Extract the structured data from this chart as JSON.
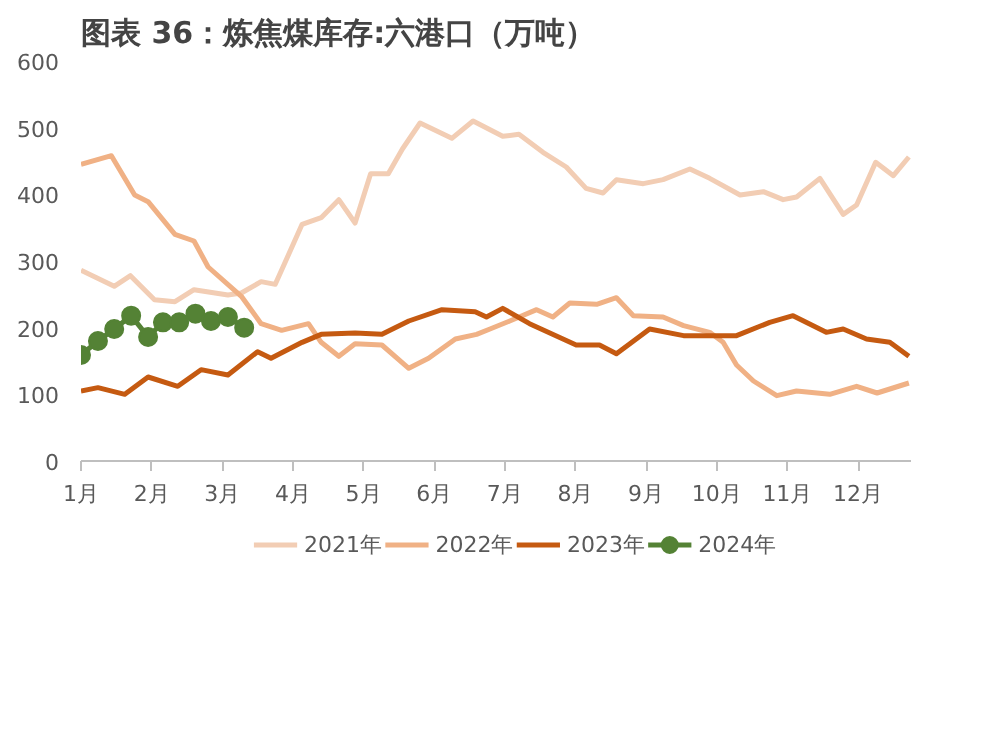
{
  "chart_data": {
    "type": "line",
    "title": "图表 36：炼焦煤库存:六港口（万吨）",
    "xlim": [
      1,
      12.75
    ],
    "xticks": [
      {
        "value": 1,
        "label": "1月"
      },
      {
        "value": 2,
        "label": "2月"
      },
      {
        "value": 3,
        "label": "3月"
      },
      {
        "value": 4,
        "label": "4月"
      },
      {
        "value": 5,
        "label": "5月"
      },
      {
        "value": 6,
        "label": "6月"
      },
      {
        "value": 7,
        "label": "7月"
      },
      {
        "value": 8,
        "label": "8月"
      },
      {
        "value": 9,
        "label": "9月"
      },
      {
        "value": 10,
        "label": "10月"
      },
      {
        "value": 11,
        "label": "11月"
      },
      {
        "value": 12,
        "label": "12月"
      }
    ],
    "ylim": [
      0,
      600
    ],
    "yticks": [
      0,
      100,
      200,
      300,
      400,
      500,
      600
    ],
    "grid": false,
    "legend": "bottom",
    "series": [
      {
        "name": "2021年",
        "color": "#f2cdb4",
        "marker": "none",
        "x": [
          1.0,
          1.47,
          1.7,
          2.04,
          2.33,
          2.6,
          3.08,
          3.27,
          3.55,
          3.75,
          4.13,
          4.4,
          4.65,
          4.88,
          5.1,
          5.35,
          5.55,
          5.8,
          6.25,
          6.55,
          6.97,
          7.2,
          7.54,
          7.87,
          8.15,
          8.39,
          8.58,
          8.96,
          9.24,
          9.62,
          9.9,
          10.33,
          10.66,
          10.94,
          11.13,
          11.46,
          11.79,
          11.98,
          12.25,
          12.5,
          12.72
        ],
        "values": [
          286,
          262,
          278,
          242,
          239,
          257,
          249,
          252,
          269,
          265,
          355,
          365,
          392,
          357,
          431,
          431,
          468,
          507,
          484,
          510,
          487,
          490,
          463,
          441,
          409,
          402,
          422,
          416,
          422,
          438,
          424,
          399,
          404,
          392,
          396,
          424,
          370,
          384,
          448,
          428,
          456
        ]
      },
      {
        "name": "2022年",
        "color": "#f0b185",
        "marker": "none",
        "x": [
          1.0,
          1.43,
          1.76,
          1.95,
          2.33,
          2.6,
          2.8,
          3.27,
          3.55,
          3.84,
          4.22,
          4.4,
          4.65,
          4.88,
          5.26,
          5.64,
          5.92,
          6.3,
          6.6,
          6.79,
          7.07,
          7.45,
          7.68,
          7.92,
          8.3,
          8.58,
          8.82,
          9.24,
          9.53,
          9.9,
          10.09,
          10.28,
          10.52,
          10.85,
          11.13,
          11.6,
          11.98,
          12.27,
          12.72
        ],
        "values": [
          445,
          458,
          399,
          389,
          340,
          330,
          291,
          247,
          206,
          196,
          206,
          178,
          157,
          176,
          174,
          139,
          154,
          183,
          190,
          198,
          210,
          227,
          216,
          237,
          235,
          245,
          218,
          216,
          203,
          193,
          178,
          144,
          120,
          98,
          105,
          100,
          112,
          102,
          117
        ]
      },
      {
        "name": "2023年",
        "color": "#c55a11",
        "marker": "none",
        "x": [
          1.0,
          1.24,
          1.62,
          1.95,
          2.37,
          2.7,
          3.08,
          3.5,
          3.69,
          4.13,
          4.4,
          4.88,
          5.26,
          5.64,
          6.11,
          6.58,
          6.74,
          6.97,
          7.35,
          8.01,
          8.34,
          8.58,
          9.05,
          9.53,
          10.28,
          10.75,
          11.08,
          11.55,
          11.79,
          12.12,
          12.45,
          12.72
        ],
        "values": [
          105,
          110,
          100,
          126,
          112,
          137,
          129,
          164,
          154,
          178,
          190,
          192,
          190,
          210,
          227,
          224,
          216,
          229,
          206,
          174,
          174,
          161,
          198,
          188,
          188,
          208,
          218,
          193,
          198,
          183,
          178,
          157
        ]
      },
      {
        "name": "2024年",
        "color": "#548235",
        "marker": "circle",
        "x": [
          1.0,
          1.24,
          1.47,
          1.71,
          1.95,
          2.16,
          2.39,
          2.62,
          2.84,
          3.08,
          3.31
        ],
        "values": [
          159,
          180,
          198,
          218,
          186,
          208,
          208,
          221,
          210,
          216,
          200
        ]
      }
    ]
  }
}
